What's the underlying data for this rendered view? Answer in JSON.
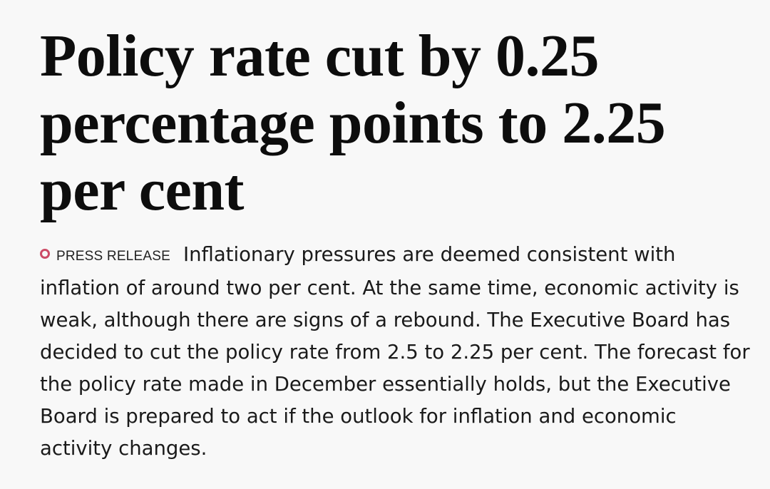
{
  "article": {
    "headline": "Policy rate cut by 0.25 percentage points to 2.25 per cent",
    "label": "PRESS RELEASE",
    "label_icon": "ring-icon",
    "label_color": "#cc4b66",
    "lead": "Inflationary pressures are deemed consistent with inflation of around two per cent. At the same time, economic activity is weak, although there are signs of a rebound. The Executive Board has decided to cut the policy rate from 2.5 to 2.25 per cent. The forecast for the policy rate made in December essentially holds, but the Executive Board is prepared to act if the outlook for inflation and economic activity changes."
  }
}
